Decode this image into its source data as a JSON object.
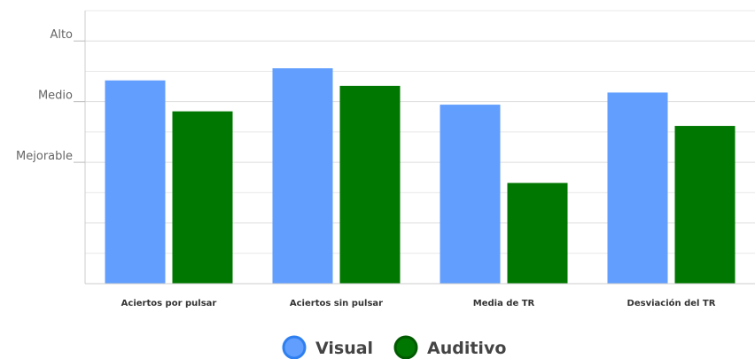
{
  "chart_data": {
    "type": "bar",
    "categories": [
      "Aciertos por pulsar",
      "Aciertos sin pulsar",
      "Media de TR",
      "Desviación del TR"
    ],
    "y_tick_labels": [
      {
        "value": 1,
        "label": "Mejorable"
      },
      {
        "value": 2,
        "label": "Medio"
      },
      {
        "value": 3,
        "label": "Alto"
      }
    ],
    "ylim": [
      -1,
      3.5
    ],
    "series": [
      {
        "name": "Visual",
        "color": "#619efe",
        "values": [
          2.35,
          2.55,
          1.95,
          2.15
        ]
      },
      {
        "name": "Auditivo",
        "color": "#007700",
        "values": [
          1.84,
          2.26,
          0.66,
          1.6
        ]
      }
    ],
    "grid": true,
    "legend_position": "bottom"
  }
}
